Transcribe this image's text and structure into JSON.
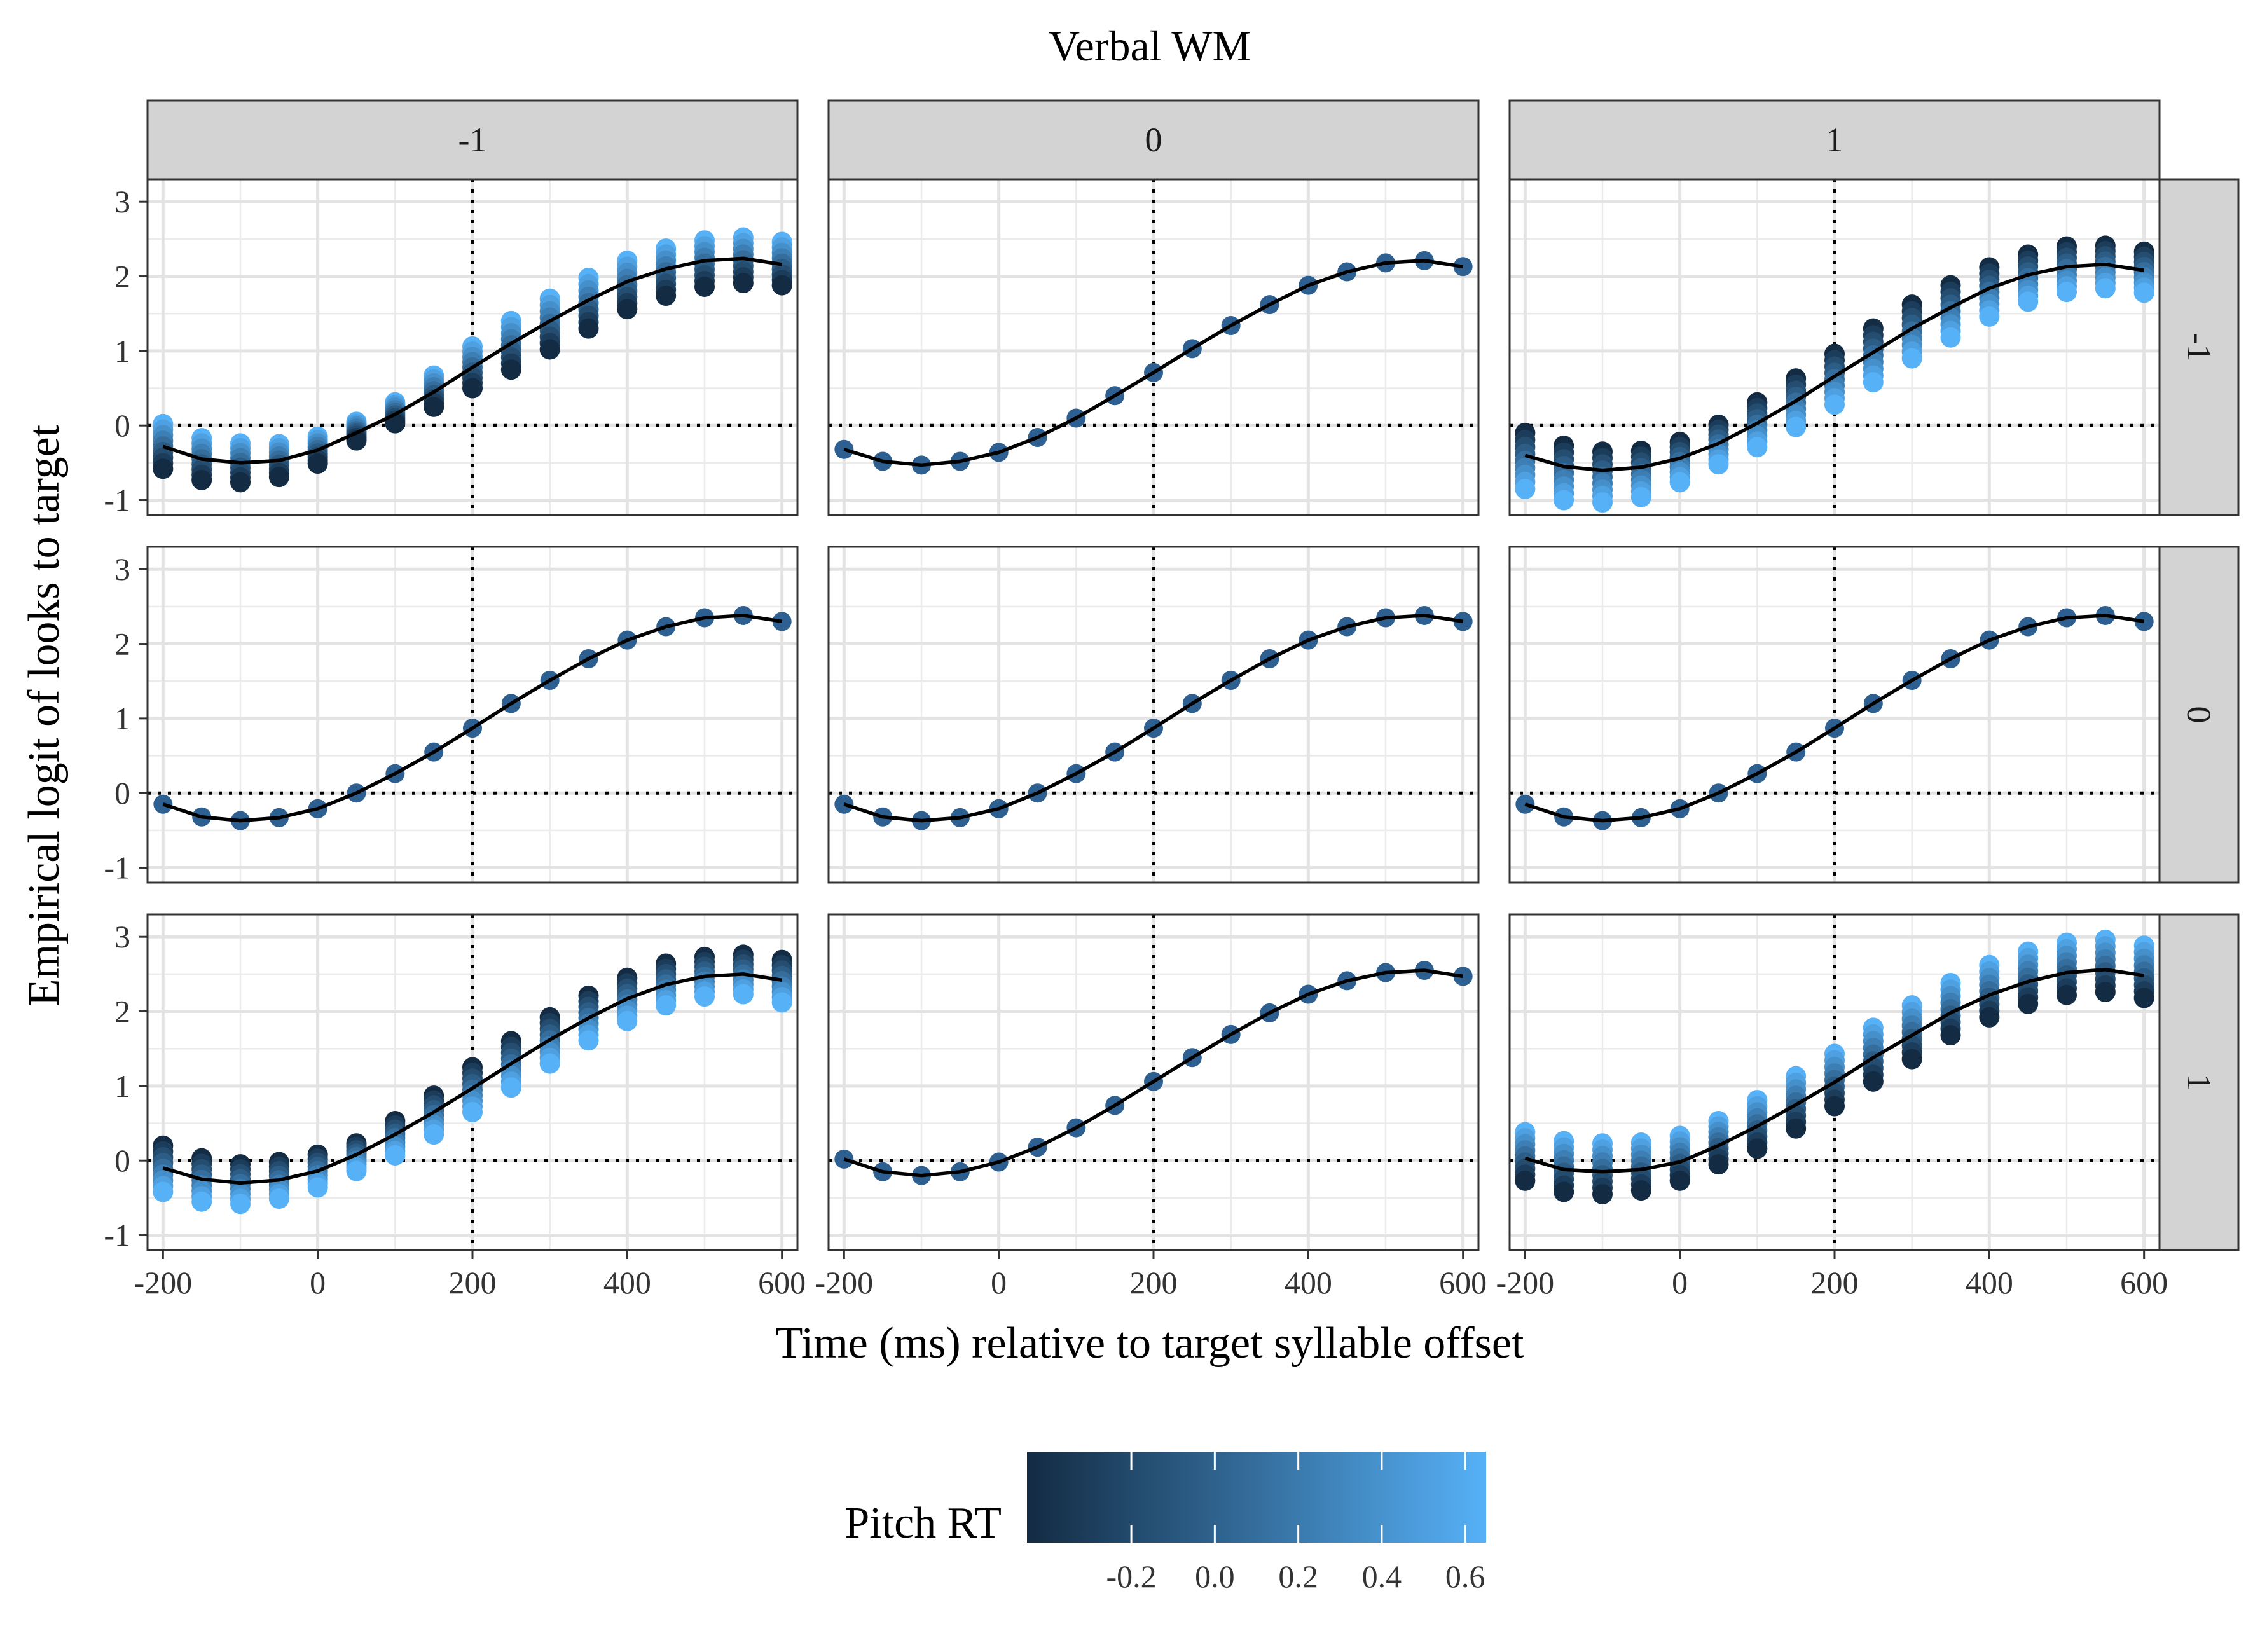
{
  "chart_data": {
    "type": "line",
    "title": "Verbal WM",
    "xlabel": "Time (ms) relative to target syllable offset",
    "ylabel": "Empirical logit of looks to target",
    "facet_cols": [
      "-1",
      "0",
      "1"
    ],
    "facet_rows": [
      "-1",
      "0",
      "1"
    ],
    "x": [
      -200,
      -150,
      -100,
      -50,
      0,
      50,
      100,
      150,
      200,
      250,
      300,
      350,
      400,
      450,
      500,
      550,
      600
    ],
    "x_ticks": [
      -200,
      0,
      200,
      400,
      600
    ],
    "x_tick_labels": [
      "-200",
      "0",
      "200",
      "400",
      "600"
    ],
    "y_ticks": [
      -1,
      0,
      1,
      2,
      3
    ],
    "y_tick_labels": [
      "-1",
      "0",
      "1",
      "2",
      "3"
    ],
    "xlim": [
      -220,
      620
    ],
    "ylim": [
      -1.2,
      3.3
    ],
    "reference_lines": {
      "x": 200,
      "y": 0,
      "style": "dotted"
    },
    "grid": true,
    "legend": {
      "title": "Pitch RT",
      "type": "colorbar",
      "position": "bottom",
      "range": [
        -0.45,
        0.65
      ],
      "ticks": [
        -0.2,
        0.0,
        0.2,
        0.4,
        0.6
      ],
      "tick_labels": [
        "-0.2",
        "0.0",
        "0.2",
        "0.4",
        "0.6"
      ],
      "color_low": "#132B43",
      "color_high": "#56B1F7"
    },
    "point_color_single": "#2d5f90",
    "line_color": "#000000",
    "panels": [
      {
        "row": "-1",
        "col": "-1",
        "y": [
          -0.28,
          -0.45,
          -0.5,
          -0.47,
          -0.33,
          -0.1,
          0.15,
          0.45,
          0.78,
          1.1,
          1.4,
          1.68,
          1.93,
          2.1,
          2.21,
          2.24,
          2.16
        ],
        "spread_low": [
          0.3,
          0.28,
          0.26,
          0.22,
          0.18,
          0.1,
          0.12,
          0.2,
          0.28,
          0.35,
          0.38,
          0.38,
          0.37,
          0.36,
          0.35,
          0.33,
          0.28
        ],
        "spread_high": [
          0.3,
          0.28,
          0.26,
          0.22,
          0.18,
          0.15,
          0.16,
          0.22,
          0.28,
          0.3,
          0.3,
          0.3,
          0.28,
          0.27,
          0.27,
          0.28,
          0.3
        ],
        "high_color_top": true
      },
      {
        "row": "-1",
        "col": "0",
        "y": [
          -0.32,
          -0.48,
          -0.53,
          -0.48,
          -0.36,
          -0.16,
          0.1,
          0.4,
          0.71,
          1.03,
          1.34,
          1.62,
          1.88,
          2.06,
          2.18,
          2.21,
          2.13
        ]
      },
      {
        "row": "-1",
        "col": "1",
        "y": [
          -0.4,
          -0.55,
          -0.6,
          -0.56,
          -0.44,
          -0.24,
          0.03,
          0.33,
          0.66,
          0.98,
          1.3,
          1.58,
          1.84,
          2.02,
          2.13,
          2.16,
          2.08
        ],
        "spread_low": [
          0.45,
          0.45,
          0.43,
          0.4,
          0.32,
          0.28,
          0.32,
          0.35,
          0.38,
          0.4,
          0.4,
          0.4,
          0.38,
          0.36,
          0.34,
          0.32,
          0.3
        ],
        "spread_high": [
          0.3,
          0.28,
          0.25,
          0.22,
          0.22,
          0.25,
          0.28,
          0.3,
          0.3,
          0.32,
          0.32,
          0.3,
          0.28,
          0.27,
          0.27,
          0.25,
          0.25
        ],
        "high_color_top": false
      },
      {
        "row": "0",
        "col": "-1",
        "y": [
          -0.15,
          -0.32,
          -0.37,
          -0.33,
          -0.21,
          0.0,
          0.26,
          0.55,
          0.87,
          1.2,
          1.51,
          1.8,
          2.05,
          2.23,
          2.35,
          2.38,
          2.3
        ]
      },
      {
        "row": "0",
        "col": "0",
        "y": [
          -0.15,
          -0.32,
          -0.37,
          -0.33,
          -0.21,
          0.0,
          0.26,
          0.55,
          0.87,
          1.2,
          1.51,
          1.8,
          2.05,
          2.23,
          2.35,
          2.38,
          2.3
        ]
      },
      {
        "row": "0",
        "col": "1",
        "y": [
          -0.15,
          -0.32,
          -0.37,
          -0.33,
          -0.21,
          0.0,
          0.26,
          0.55,
          0.87,
          1.2,
          1.51,
          1.8,
          2.05,
          2.23,
          2.35,
          2.38,
          2.3
        ]
      },
      {
        "row": "1",
        "col": "-1",
        "y": [
          -0.1,
          -0.25,
          -0.3,
          -0.26,
          -0.14,
          0.08,
          0.35,
          0.65,
          0.97,
          1.3,
          1.62,
          1.91,
          2.17,
          2.36,
          2.47,
          2.5,
          2.42
        ],
        "spread_low": [
          0.32,
          0.3,
          0.28,
          0.25,
          0.22,
          0.22,
          0.28,
          0.3,
          0.32,
          0.32,
          0.32,
          0.3,
          0.3,
          0.28,
          0.27,
          0.27,
          0.3
        ],
        "spread_high": [
          0.3,
          0.28,
          0.25,
          0.24,
          0.22,
          0.15,
          0.18,
          0.22,
          0.28,
          0.3,
          0.3,
          0.3,
          0.28,
          0.28,
          0.26,
          0.26,
          0.27
        ],
        "high_color_top": false
      },
      {
        "row": "1",
        "col": "0",
        "y": [
          0.02,
          -0.15,
          -0.2,
          -0.15,
          -0.02,
          0.18,
          0.44,
          0.74,
          1.06,
          1.38,
          1.69,
          1.98,
          2.23,
          2.41,
          2.52,
          2.55,
          2.47
        ]
      },
      {
        "row": "1",
        "col": "1",
        "y": [
          0.03,
          -0.12,
          -0.15,
          -0.12,
          -0.02,
          0.2,
          0.46,
          0.75,
          1.05,
          1.38,
          1.68,
          1.98,
          2.22,
          2.4,
          2.52,
          2.56,
          2.48
        ],
        "spread_low": [
          0.3,
          0.3,
          0.3,
          0.28,
          0.25,
          0.25,
          0.3,
          0.32,
          0.32,
          0.32,
          0.32,
          0.3,
          0.3,
          0.3,
          0.3,
          0.3,
          0.3
        ],
        "spread_high": [
          0.35,
          0.38,
          0.38,
          0.36,
          0.35,
          0.33,
          0.35,
          0.38,
          0.38,
          0.4,
          0.4,
          0.4,
          0.4,
          0.4,
          0.4,
          0.4,
          0.4
        ],
        "high_color_top": true
      }
    ]
  }
}
